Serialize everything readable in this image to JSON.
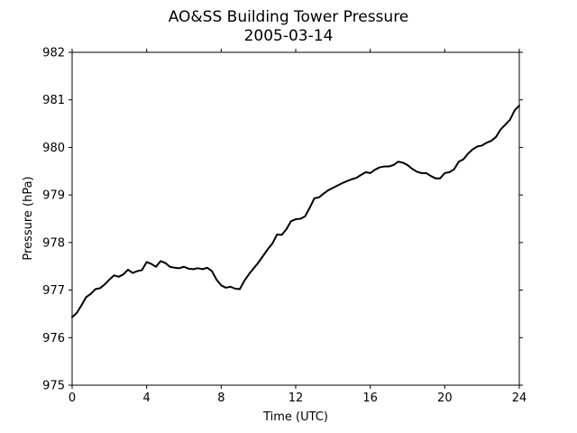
{
  "chart_data": {
    "type": "line",
    "title": "AO&SS Building Tower Pressure",
    "subtitle": "2005-03-14",
    "xlabel": "Time (UTC)",
    "ylabel": "Pressure (hPa)",
    "xlim": [
      0,
      24
    ],
    "ylim": [
      975,
      982
    ],
    "xticks": [
      0,
      4,
      8,
      12,
      16,
      20,
      24
    ],
    "yticks": [
      975,
      976,
      977,
      978,
      979,
      980,
      981,
      982
    ],
    "grid": false,
    "legend": "none",
    "series": [
      {
        "color": "#000000",
        "x": [
          0,
          0.25,
          0.5,
          0.75,
          1,
          1.25,
          1.5,
          1.75,
          2,
          2.25,
          2.5,
          2.75,
          3,
          3.25,
          3.5,
          3.75,
          4,
          4.25,
          4.5,
          4.75,
          5,
          5.25,
          5.5,
          5.75,
          6,
          6.25,
          6.5,
          6.75,
          7,
          7.25,
          7.5,
          7.75,
          8,
          8.25,
          8.5,
          8.75,
          9,
          9.25,
          9.5,
          9.75,
          10,
          10.25,
          10.5,
          10.75,
          11,
          11.25,
          11.5,
          11.75,
          12,
          12.25,
          12.5,
          12.75,
          13,
          13.25,
          13.5,
          13.75,
          14,
          14.25,
          14.5,
          14.75,
          15,
          15.25,
          15.5,
          15.75,
          16,
          16.25,
          16.5,
          16.75,
          17,
          17.25,
          17.5,
          17.75,
          18,
          18.25,
          18.5,
          18.75,
          19,
          19.25,
          19.5,
          19.75,
          20,
          20.25,
          20.5,
          20.75,
          21,
          21.25,
          21.5,
          21.75,
          22,
          22.25,
          22.5,
          22.75,
          23,
          23.25,
          23.5,
          23.75,
          24
        ],
        "values": [
          976.43,
          976.52,
          976.68,
          976.85,
          976.92,
          977.02,
          977.04,
          977.12,
          977.22,
          977.31,
          977.28,
          977.33,
          977.43,
          977.36,
          977.4,
          977.42,
          977.59,
          977.55,
          977.49,
          977.61,
          977.57,
          977.49,
          977.47,
          977.46,
          977.49,
          977.45,
          977.44,
          977.46,
          977.44,
          977.47,
          977.4,
          977.22,
          977.1,
          977.05,
          977.07,
          977.03,
          977.02,
          977.2,
          977.34,
          977.46,
          977.58,
          977.72,
          977.86,
          977.98,
          978.17,
          978.16,
          978.28,
          978.45,
          978.49,
          978.5,
          978.55,
          978.73,
          978.93,
          978.95,
          979.03,
          979.1,
          979.15,
          979.2,
          979.25,
          979.29,
          979.33,
          979.36,
          979.42,
          979.48,
          979.46,
          979.53,
          979.58,
          979.6,
          979.6,
          979.63,
          979.7,
          979.68,
          979.63,
          979.55,
          979.49,
          979.46,
          979.46,
          979.4,
          979.35,
          979.35,
          979.46,
          979.48,
          979.54,
          979.7,
          979.75,
          979.87,
          979.96,
          980.02,
          980.04,
          980.1,
          980.14,
          980.22,
          980.38,
          980.48,
          980.58,
          980.78,
          980.88
        ]
      }
    ]
  }
}
